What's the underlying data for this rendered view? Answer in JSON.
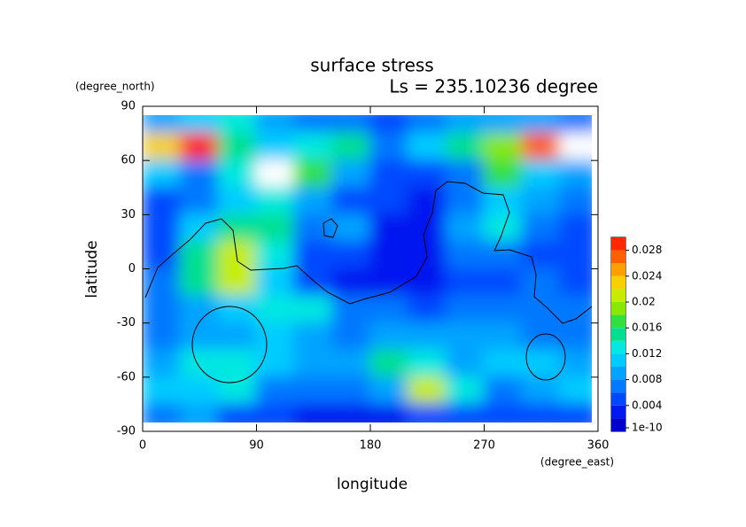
{
  "chart_data": {
    "type": "heatmap",
    "title": "surface stress",
    "subtitle": "Ls = 235.10236 degree",
    "x_label": "longitude",
    "x_unit": "(degree_east)",
    "y_label": "latitude",
    "y_unit": "(degree_north)",
    "x": [
      15,
      45,
      75,
      105,
      135,
      165,
      195,
      225,
      255,
      285,
      315,
      345
    ],
    "y": [
      82.5,
      67.5,
      52.5,
      37.5,
      22.5,
      7.5,
      -7.5,
      -22.5,
      -37.5,
      -52.5,
      -67.5,
      -82.5
    ],
    "values": [
      [
        0.008,
        0.01,
        0.012,
        0.008,
        0.006,
        0.006,
        0.005,
        0.006,
        0.008,
        0.008,
        0.008,
        0.006
      ],
      [
        0.022,
        0.028,
        0.014,
        0.01,
        0.012,
        0.014,
        0.006,
        0.01,
        0.014,
        0.018,
        0.026,
        0.03
      ],
      [
        0.01,
        0.006,
        0.012,
        0.03,
        0.016,
        0.008,
        0.004,
        0.004,
        0.006,
        0.016,
        0.01,
        0.008
      ],
      [
        0.004,
        0.006,
        0.01,
        0.012,
        0.008,
        0.004,
        0.004,
        0.003,
        0.006,
        0.01,
        0.008,
        0.006
      ],
      [
        0.004,
        0.01,
        0.014,
        0.014,
        0.006,
        0.008,
        0.003,
        0.003,
        0.008,
        0.012,
        0.006,
        0.004
      ],
      [
        0.004,
        0.014,
        0.02,
        0.012,
        0.004,
        0.004,
        0.003,
        0.003,
        0.006,
        0.006,
        0.004,
        0.004
      ],
      [
        0.006,
        0.014,
        0.02,
        0.01,
        0.004,
        0.003,
        0.003,
        0.003,
        0.004,
        0.004,
        0.006,
        0.004
      ],
      [
        0.006,
        0.008,
        0.01,
        0.012,
        0.012,
        0.006,
        0.006,
        0.004,
        0.006,
        0.006,
        0.006,
        0.006
      ],
      [
        0.006,
        0.008,
        0.008,
        0.01,
        0.008,
        0.006,
        0.008,
        0.008,
        0.008,
        0.008,
        0.006,
        0.006
      ],
      [
        0.008,
        0.012,
        0.012,
        0.01,
        0.008,
        0.008,
        0.014,
        0.012,
        0.008,
        0.01,
        0.01,
        0.008
      ],
      [
        0.01,
        0.01,
        0.012,
        0.006,
        0.006,
        0.006,
        0.008,
        0.02,
        0.012,
        0.006,
        0.008,
        0.01
      ],
      [
        0.006,
        0.008,
        0.004,
        0.004,
        0.003,
        0.003,
        0.003,
        0.004,
        0.004,
        0.004,
        0.004,
        0.004
      ]
    ],
    "xlim": [
      0,
      360
    ],
    "xticks": [
      0,
      90,
      180,
      270,
      360
    ],
    "ylim": [
      -90,
      90
    ],
    "yticks": [
      90,
      60,
      30,
      0,
      -30,
      -60,
      -90
    ],
    "clim": [
      0,
      0.03
    ],
    "cticks": [
      1e-10,
      0.004,
      0.008,
      0.012,
      0.016,
      0.02,
      0.024,
      0.028
    ],
    "colors": [
      "#0000cc",
      "#0018f0",
      "#0048ff",
      "#0078ff",
      "#00a4ff",
      "#00ccff",
      "#00e8e0",
      "#00e090",
      "#30e040",
      "#88e800",
      "#c8ec00",
      "#f8d000",
      "#ffa000",
      "#ff6000",
      "#ff2800"
    ]
  }
}
